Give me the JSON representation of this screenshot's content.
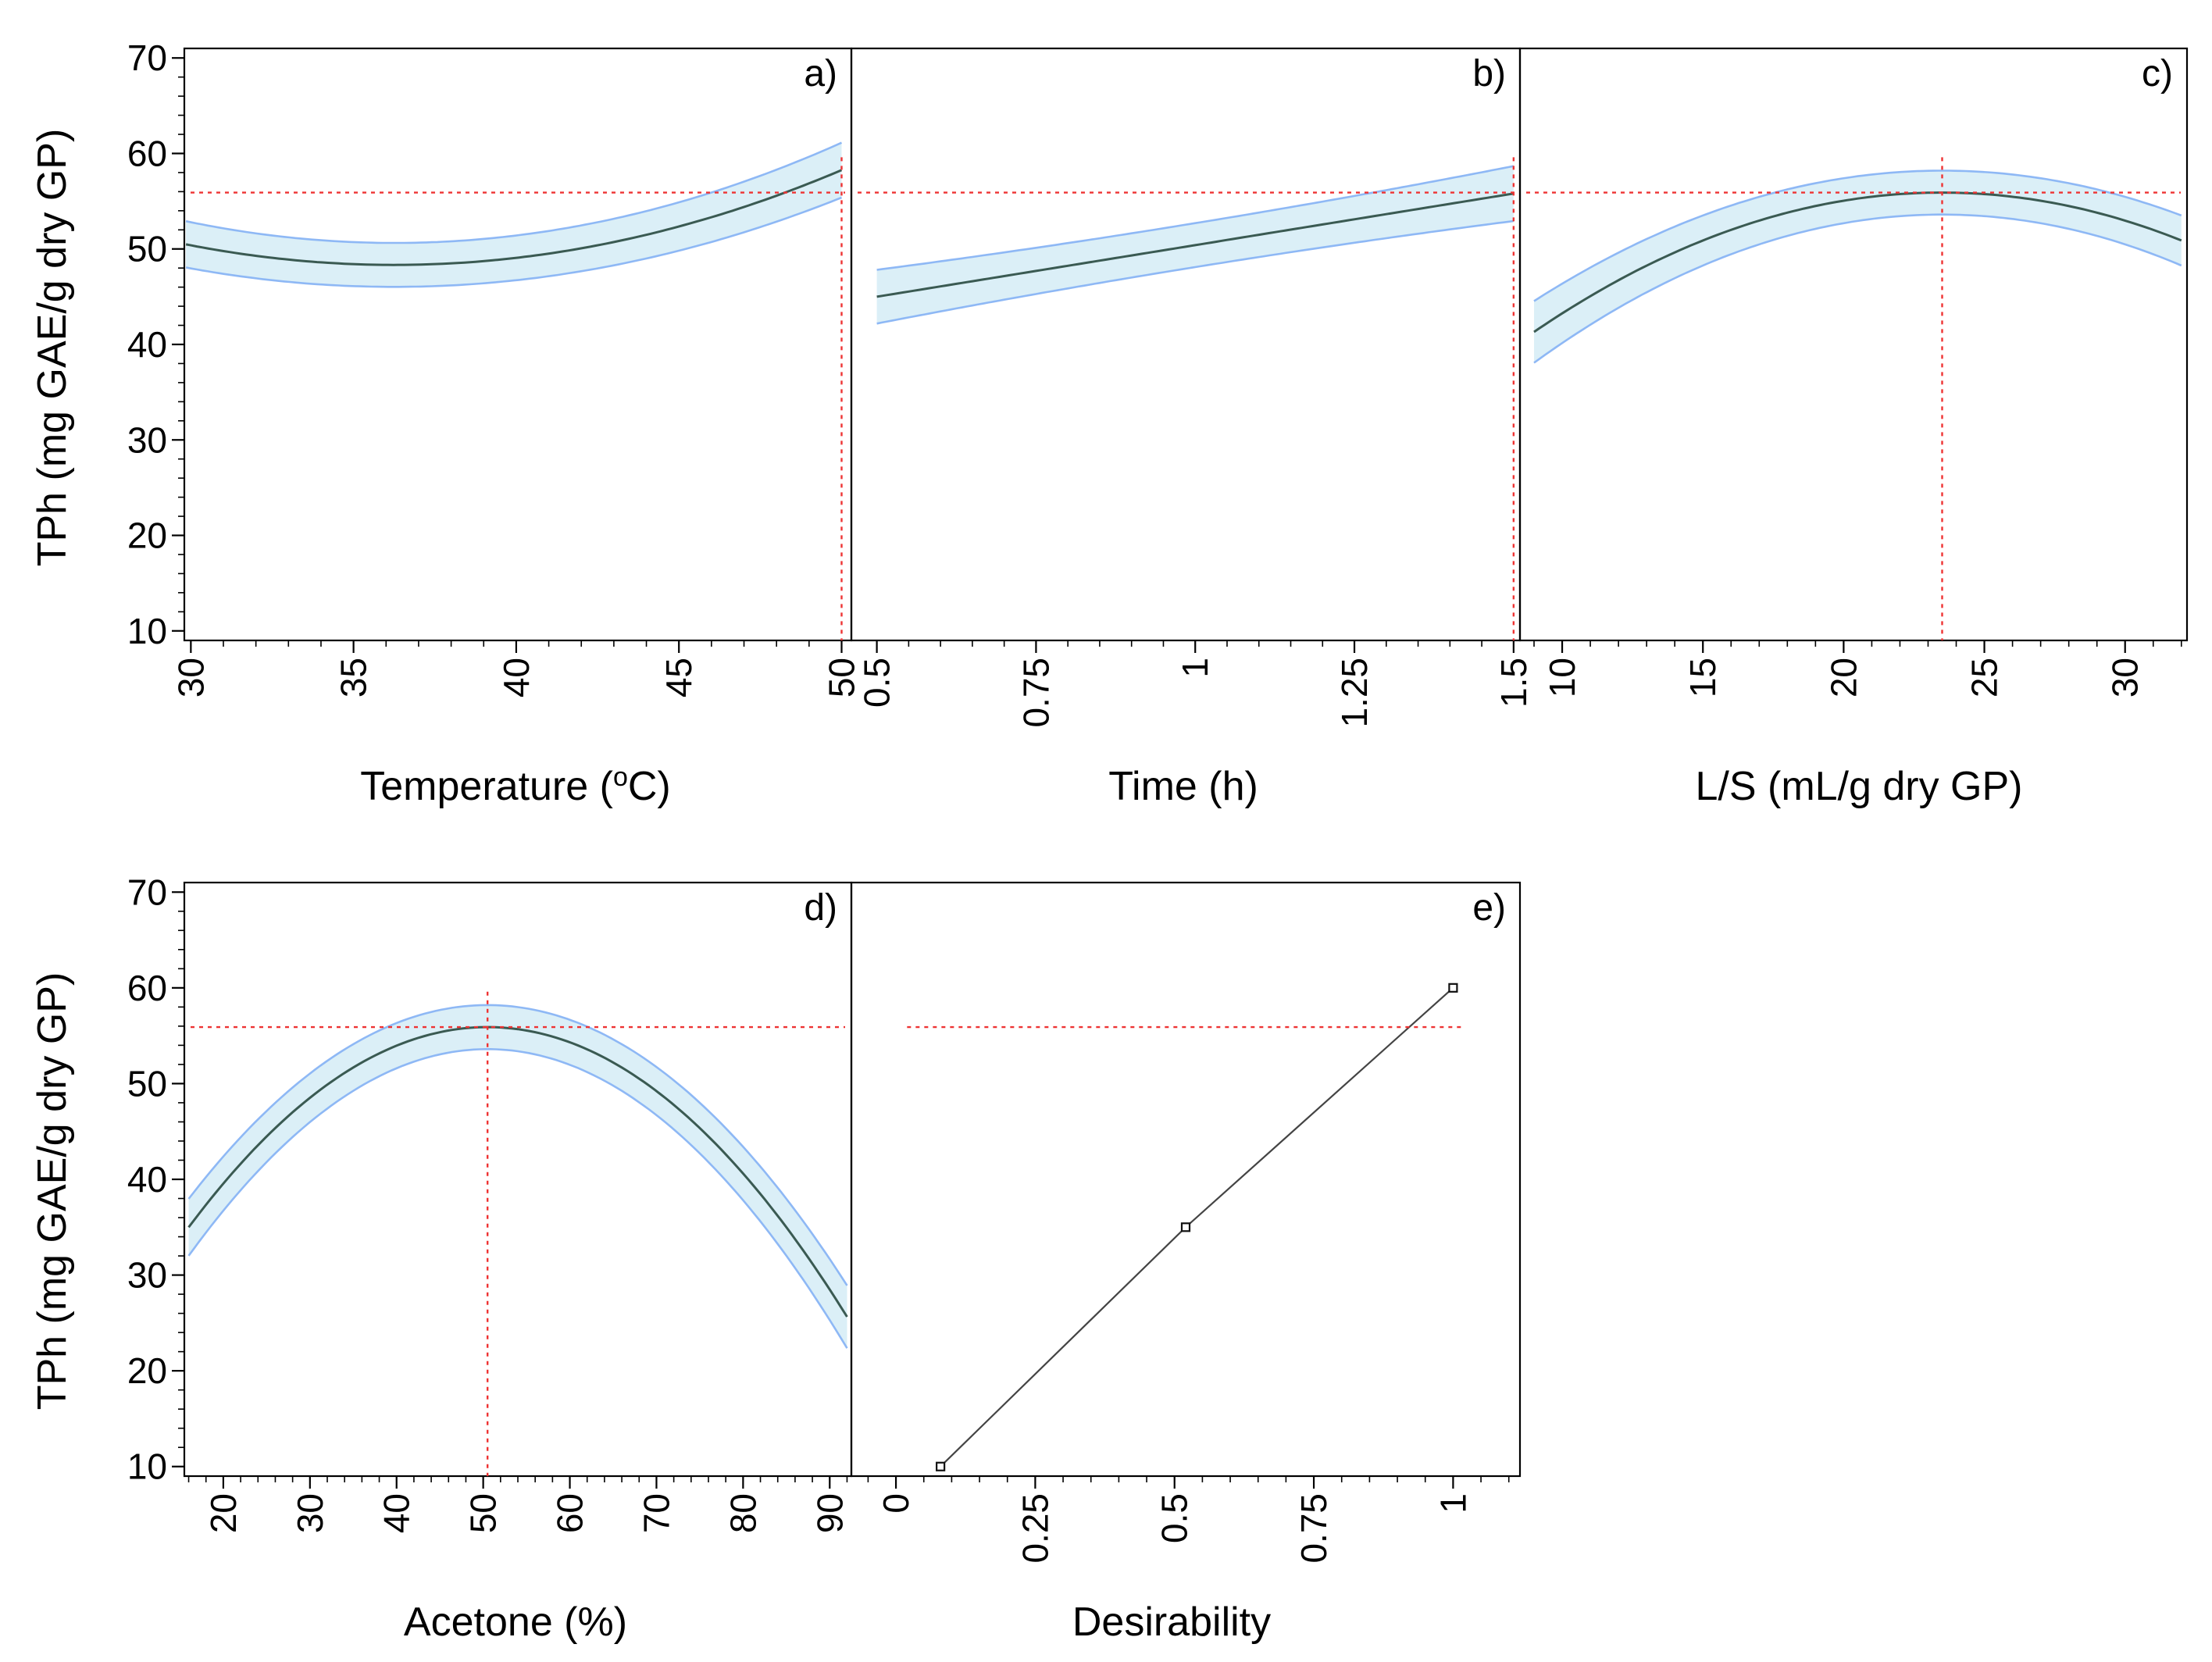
{
  "chart_data": [
    {
      "type": "line",
      "panel": "a)",
      "xlabel": "Temperature (",
      "xlabel_super": "o",
      "xlabel_tail": "C)",
      "ylabel": "TPh (mg GAE/g dry GP)",
      "xlim": [
        29.8,
        50.3
      ],
      "ylim": [
        9,
        71
      ],
      "xticks": [
        30,
        35,
        40,
        45,
        50
      ],
      "xtick_labels": [
        "30",
        "35",
        "40",
        "45",
        "50"
      ],
      "yticks": [
        10,
        20,
        30,
        40,
        50,
        60,
        70
      ],
      "ytick_labels": [
        "10",
        "20",
        "30",
        "40",
        "50",
        "60",
        "70"
      ],
      "fit": {
        "kind": "poly",
        "coef": [
          117.32,
          -3.8063,
          0.0525
        ],
        "ci_base": 2.3,
        "ci_scale": 0.6
      },
      "ref_y": 55.9,
      "ref_x": 50
    },
    {
      "type": "line",
      "panel": "b)",
      "xlabel": "Time (h)",
      "ylim": [
        9,
        71
      ],
      "xlim": [
        0.46,
        1.51
      ],
      "xticks": [
        0.5,
        0.75,
        1,
        1.25,
        1.5
      ],
      "xtick_labels": [
        "0.5",
        "0.75",
        "1",
        "1.25",
        "1.5"
      ],
      "fit": {
        "kind": "poly",
        "coef": [
          39.6,
          10.8,
          0.0
        ],
        "ci_base": 2.3,
        "ci_scale": 0.6
      },
      "ref_y": 55.9,
      "ref_x": 1.5
    },
    {
      "type": "line",
      "panel": "c)",
      "xlabel": "L/S (mL/g dry GP)",
      "ylim": [
        9,
        71
      ],
      "xlim": [
        8.5,
        32.2
      ],
      "xticks": [
        10,
        15,
        20,
        25,
        30
      ],
      "xtick_labels": [
        "10",
        "15",
        "20",
        "25",
        "30"
      ],
      "fit": {
        "kind": "vertex",
        "vx": 23.5,
        "vy": 55.9,
        "a": -0.0694,
        "ci_base": 2.3,
        "ci_scale": 1.0
      },
      "ref_y": 55.9,
      "ref_x": 23.5
    },
    {
      "type": "line",
      "panel": "d)",
      "xlabel": "Acetone (%)",
      "ylabel": "TPh (mg GAE/g dry GP)",
      "xlim": [
        15.5,
        92.5
      ],
      "ylim": [
        9,
        71
      ],
      "xticks": [
        20,
        30,
        40,
        50,
        60,
        70,
        80,
        90
      ],
      "xtick_labels": [
        "20",
        "30",
        "40",
        "50",
        "60",
        "70",
        "80",
        "90"
      ],
      "yticks": [
        10,
        20,
        30,
        40,
        50,
        60,
        70
      ],
      "ytick_labels": [
        "10",
        "20",
        "30",
        "40",
        "50",
        "60",
        "70"
      ],
      "fit": {
        "kind": "vertex",
        "vx": 50.5,
        "vy": 55.9,
        "a": -0.01757,
        "ci_base": 2.3,
        "ci_scale": 1.0
      },
      "ref_y": 55.9,
      "ref_x": 50.5
    },
    {
      "type": "line",
      "panel": "e)",
      "xlabel": "Desirability",
      "ylim": [
        9,
        71
      ],
      "xlim": [
        -0.08,
        1.12
      ],
      "xticks": [
        0,
        0.25,
        0.5,
        0.75,
        1
      ],
      "xtick_labels": [
        "0",
        "0.25",
        "0.5",
        "0.75",
        "1"
      ],
      "points": [
        {
          "x": 0.08,
          "y": 10
        },
        {
          "x": 0.52,
          "y": 35
        },
        {
          "x": 1.0,
          "y": 60
        }
      ],
      "ref_y": 55.9,
      "ref_x_range": [
        0.02,
        1.02
      ]
    }
  ]
}
